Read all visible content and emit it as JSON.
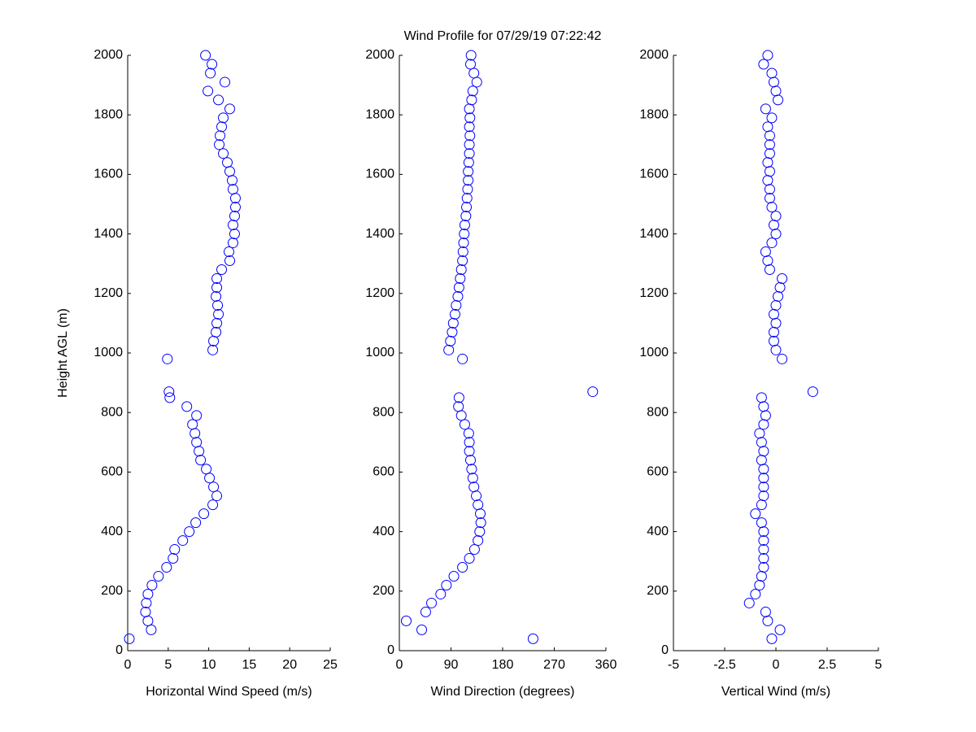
{
  "chart_data": [
    {
      "type": "scatter",
      "xlabel": "Horizontal Wind Speed (m/s)",
      "ylabel": "Height AGL (m)",
      "color": "#0000ff",
      "xlim": [
        0,
        25
      ],
      "xticks": [
        0,
        5,
        10,
        15,
        20,
        25
      ],
      "ylim": [
        0,
        2000
      ],
      "yticks": [
        0,
        200,
        400,
        600,
        800,
        1000,
        1200,
        1400,
        1600,
        1800,
        2000
      ],
      "x": [
        0.2,
        2.9,
        2.5,
        2.2,
        2.3,
        2.5,
        3.0,
        3.8,
        4.8,
        5.6,
        5.8,
        6.8,
        7.6,
        8.4,
        9.4,
        10.5,
        11.0,
        10.6,
        10.1,
        9.7,
        9.0,
        8.8,
        8.5,
        8.3,
        8.0,
        8.5,
        7.3,
        5.2,
        5.1,
        4.9,
        10.5,
        10.6,
        10.9,
        11.0,
        11.2,
        11.1,
        10.9,
        11.0,
        11.0,
        11.6,
        12.6,
        12.5,
        13.0,
        13.2,
        13.0,
        13.2,
        13.3,
        13.3,
        13.0,
        12.9,
        12.6,
        12.3,
        11.8,
        11.3,
        11.4,
        11.6,
        11.8,
        12.6,
        11.2,
        9.9,
        12.0,
        10.2,
        10.4,
        9.6
      ],
      "y": [
        40,
        70,
        100,
        130,
        160,
        190,
        220,
        250,
        280,
        310,
        340,
        370,
        400,
        430,
        460,
        490,
        520,
        550,
        580,
        610,
        640,
        670,
        700,
        730,
        760,
        790,
        820,
        850,
        870,
        980,
        1010,
        1040,
        1070,
        1100,
        1130,
        1160,
        1190,
        1220,
        1250,
        1280,
        1310,
        1340,
        1370,
        1400,
        1430,
        1460,
        1490,
        1520,
        1550,
        1580,
        1610,
        1640,
        1670,
        1700,
        1730,
        1760,
        1790,
        1820,
        1850,
        1880,
        1910,
        1940,
        1970,
        2000
      ]
    },
    {
      "type": "scatter",
      "title": "Wind Profile for  07/29/19 07:22:42",
      "xlabel": "Wind Direction (degrees)",
      "color": "#0000ff",
      "xlim": [
        0,
        360
      ],
      "xticks": [
        0,
        90,
        180,
        270,
        360
      ],
      "ylim": [
        0,
        2000
      ],
      "yticks": [
        0,
        200,
        400,
        600,
        800,
        1000,
        1200,
        1400,
        1600,
        1800,
        2000
      ],
      "x": [
        233,
        39,
        12,
        46,
        56,
        72,
        82,
        95,
        110,
        122,
        131,
        137,
        140,
        142,
        141,
        137,
        134,
        130,
        128,
        126,
        124,
        122,
        122,
        121,
        114,
        108,
        103,
        104,
        337,
        110,
        86,
        89,
        92,
        94,
        97,
        99,
        102,
        104,
        106,
        108,
        110,
        111,
        112,
        113,
        114,
        116,
        117,
        118,
        119,
        120,
        120,
        121,
        122,
        122,
        123,
        122,
        123,
        122,
        126,
        128,
        135,
        130,
        124,
        125
      ],
      "y": [
        40,
        70,
        100,
        130,
        160,
        190,
        220,
        250,
        280,
        310,
        340,
        370,
        400,
        430,
        460,
        490,
        520,
        550,
        580,
        610,
        640,
        670,
        700,
        730,
        760,
        790,
        820,
        850,
        870,
        980,
        1010,
        1040,
        1070,
        1100,
        1130,
        1160,
        1190,
        1220,
        1250,
        1280,
        1310,
        1340,
        1370,
        1400,
        1430,
        1460,
        1490,
        1520,
        1550,
        1580,
        1610,
        1640,
        1670,
        1700,
        1730,
        1760,
        1790,
        1820,
        1850,
        1880,
        1910,
        1940,
        1970,
        2000
      ]
    },
    {
      "type": "scatter",
      "xlabel": "Vertical Wind (m/s)",
      "color": "#0000ff",
      "xlim": [
        -5,
        5
      ],
      "xticks": [
        -5,
        -2.5,
        0,
        2.5,
        5
      ],
      "ylim": [
        0,
        2000
      ],
      "yticks": [
        0,
        200,
        400,
        600,
        800,
        1000,
        1200,
        1400,
        1600,
        1800,
        2000
      ],
      "x": [
        -0.2,
        0.2,
        -0.4,
        -0.5,
        -1.3,
        -1.0,
        -0.8,
        -0.7,
        -0.6,
        -0.6,
        -0.6,
        -0.6,
        -0.6,
        -0.7,
        -1.0,
        -0.7,
        -0.6,
        -0.6,
        -0.6,
        -0.6,
        -0.7,
        -0.6,
        -0.7,
        -0.8,
        -0.6,
        -0.5,
        -0.6,
        -0.7,
        1.8,
        0.3,
        0.0,
        -0.1,
        -0.1,
        0.0,
        -0.1,
        0.0,
        0.1,
        0.2,
        0.3,
        -0.3,
        -0.4,
        -0.5,
        -0.2,
        0.0,
        -0.1,
        0.0,
        -0.2,
        -0.3,
        -0.3,
        -0.4,
        -0.3,
        -0.4,
        -0.3,
        -0.3,
        -0.3,
        -0.4,
        -0.2,
        -0.5,
        0.1,
        0.0,
        -0.1,
        -0.2,
        -0.6,
        -0.4
      ],
      "y": [
        40,
        70,
        100,
        130,
        160,
        190,
        220,
        250,
        280,
        310,
        340,
        370,
        400,
        430,
        460,
        490,
        520,
        550,
        580,
        610,
        640,
        670,
        700,
        730,
        760,
        790,
        820,
        850,
        870,
        980,
        1010,
        1040,
        1070,
        1100,
        1130,
        1160,
        1190,
        1220,
        1250,
        1280,
        1310,
        1340,
        1370,
        1400,
        1430,
        1460,
        1490,
        1520,
        1550,
        1580,
        1610,
        1640,
        1670,
        1700,
        1730,
        1760,
        1790,
        1820,
        1850,
        1880,
        1910,
        1940,
        1970,
        2000
      ]
    }
  ]
}
